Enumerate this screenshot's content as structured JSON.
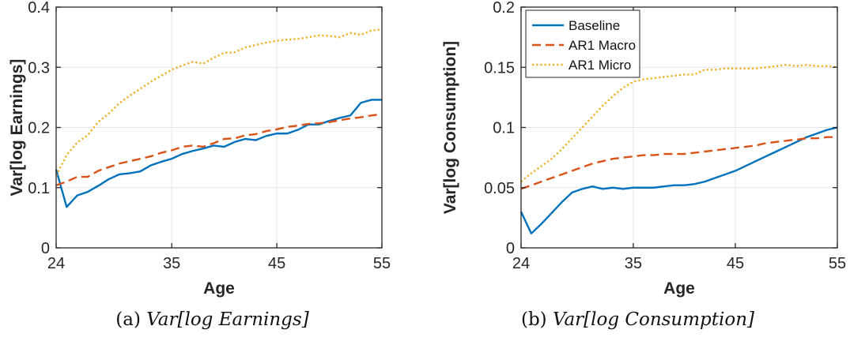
{
  "colors": {
    "baseline": "#0072BD",
    "macro": "#D95319",
    "micro": "#EDB120",
    "axis": "#262626",
    "grid": "#e6e6e6"
  },
  "chart_data": [
    {
      "type": "line",
      "xlabel": "Age",
      "ylabel": "Var[log Earnings]",
      "xlim": [
        24,
        55
      ],
      "ylim": [
        0,
        0.4
      ],
      "xticks": [
        "24",
        "35",
        "45",
        "55"
      ],
      "yticks": [
        "0",
        "0.1",
        "0.2",
        "0.3",
        "0.4"
      ],
      "grid": true,
      "caption_prefix": "(a)",
      "caption_math": "Var[log Earnings]",
      "x": [
        24,
        25,
        26,
        27,
        28,
        29,
        30,
        31,
        32,
        33,
        34,
        35,
        36,
        37,
        38,
        39,
        40,
        41,
        42,
        43,
        44,
        45,
        46,
        47,
        48,
        49,
        50,
        51,
        52,
        53,
        54,
        55
      ],
      "series": [
        {
          "name": "Baseline",
          "style": "solid",
          "values": [
            0.13,
            0.068,
            0.087,
            0.093,
            0.103,
            0.114,
            0.122,
            0.124,
            0.127,
            0.137,
            0.143,
            0.148,
            0.156,
            0.161,
            0.165,
            0.17,
            0.168,
            0.176,
            0.181,
            0.179,
            0.186,
            0.19,
            0.19,
            0.196,
            0.205,
            0.205,
            0.211,
            0.216,
            0.22,
            0.241,
            0.246,
            0.246
          ]
        },
        {
          "name": "AR1 Macro",
          "style": "dashed",
          "values": [
            0.104,
            0.11,
            0.118,
            0.118,
            0.128,
            0.134,
            0.14,
            0.144,
            0.148,
            0.152,
            0.158,
            0.162,
            0.168,
            0.17,
            0.168,
            0.174,
            0.181,
            0.182,
            0.187,
            0.189,
            0.194,
            0.197,
            0.201,
            0.203,
            0.206,
            0.207,
            0.209,
            0.212,
            0.215,
            0.217,
            0.22,
            0.222
          ]
        },
        {
          "name": "AR1 Micro",
          "style": "dotted",
          "values": [
            0.12,
            0.154,
            0.175,
            0.187,
            0.209,
            0.223,
            0.24,
            0.253,
            0.264,
            0.276,
            0.286,
            0.296,
            0.303,
            0.309,
            0.306,
            0.316,
            0.324,
            0.325,
            0.333,
            0.337,
            0.341,
            0.344,
            0.346,
            0.347,
            0.35,
            0.353,
            0.352,
            0.35,
            0.357,
            0.354,
            0.361,
            0.363
          ]
        }
      ]
    },
    {
      "type": "line",
      "xlabel": "Age",
      "ylabel": "Var[log Consumption]",
      "xlim": [
        24,
        55
      ],
      "ylim": [
        0,
        0.2
      ],
      "xticks": [
        "24",
        "35",
        "45",
        "55"
      ],
      "yticks": [
        "0",
        "0.05",
        "0.1",
        "0.15",
        "0.2"
      ],
      "grid": true,
      "legend": "top-left",
      "caption_prefix": "(b)",
      "caption_math": "Var[log Consumption]",
      "x": [
        24,
        25,
        26,
        27,
        28,
        29,
        30,
        31,
        32,
        33,
        34,
        35,
        36,
        37,
        38,
        39,
        40,
        41,
        42,
        43,
        44,
        45,
        46,
        47,
        48,
        49,
        50,
        51,
        52,
        53,
        54,
        55
      ],
      "series": [
        {
          "name": "Baseline",
          "style": "solid",
          "values": [
            0.03,
            0.012,
            0.02,
            0.029,
            0.038,
            0.046,
            0.049,
            0.051,
            0.049,
            0.05,
            0.049,
            0.05,
            0.05,
            0.05,
            0.051,
            0.052,
            0.052,
            0.053,
            0.055,
            0.058,
            0.061,
            0.064,
            0.068,
            0.072,
            0.076,
            0.08,
            0.084,
            0.088,
            0.092,
            0.095,
            0.098,
            0.1
          ]
        },
        {
          "name": "AR1 Macro",
          "style": "dashed",
          "values": [
            0.049,
            0.052,
            0.055,
            0.058,
            0.061,
            0.064,
            0.067,
            0.07,
            0.072,
            0.074,
            0.075,
            0.076,
            0.077,
            0.077,
            0.078,
            0.078,
            0.078,
            0.079,
            0.08,
            0.081,
            0.082,
            0.083,
            0.084,
            0.085,
            0.087,
            0.088,
            0.089,
            0.09,
            0.091,
            0.091,
            0.092,
            0.092
          ]
        },
        {
          "name": "AR1 Micro",
          "style": "dotted",
          "values": [
            0.055,
            0.062,
            0.068,
            0.074,
            0.082,
            0.091,
            0.1,
            0.109,
            0.118,
            0.126,
            0.133,
            0.138,
            0.14,
            0.141,
            0.142,
            0.143,
            0.144,
            0.144,
            0.148,
            0.148,
            0.149,
            0.149,
            0.149,
            0.149,
            0.15,
            0.151,
            0.152,
            0.151,
            0.152,
            0.151,
            0.151,
            0.15
          ]
        }
      ]
    }
  ]
}
